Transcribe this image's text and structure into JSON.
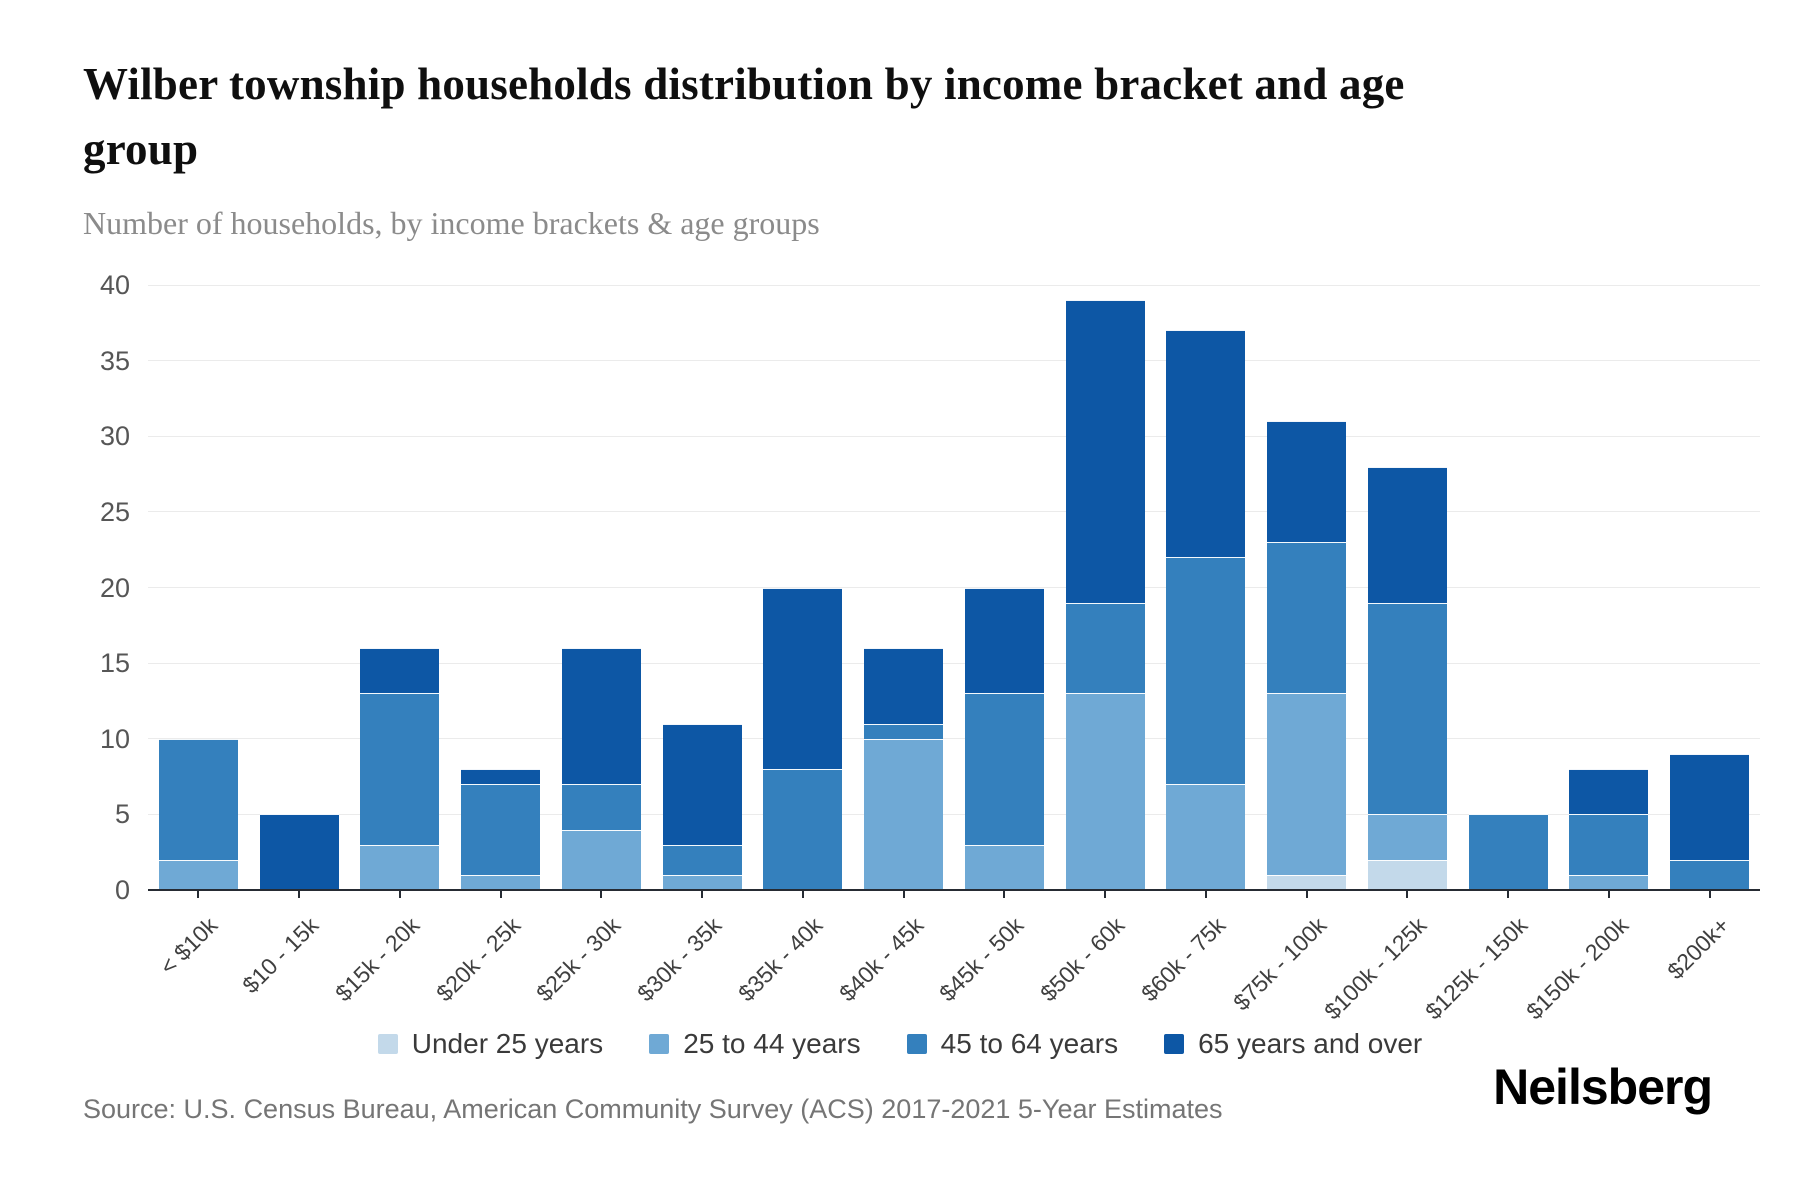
{
  "title": "Wilber township households distribution by income bracket and age group",
  "subtitle": "Number of households, by income brackets & age groups",
  "source": "Source: U.S. Census Bureau, American Community Survey (ACS) 2017-2021 5-Year Estimates",
  "logo": "Neilsberg",
  "colors": {
    "under_25": "#c3d9ea",
    "25_to_44": "#6fa9d5",
    "45_to_64": "#3480bd",
    "65_and_over": "#0d57a5",
    "gridline": "#ebebeb",
    "axis_line": "#262b33"
  },
  "chart_data": {
    "type": "bar",
    "stacked": true,
    "title": "Wilber township households distribution by income bracket and age group",
    "xlabel": "",
    "ylabel": "Number of households",
    "ylim": [
      0,
      40
    ],
    "y_ticks": [
      0,
      5,
      10,
      15,
      20,
      25,
      30,
      35,
      40
    ],
    "grid": true,
    "legend_position": "bottom",
    "categories": [
      "< $10k",
      "$10 - 15k",
      "$15k - 20k",
      "$20k - 25k",
      "$25k - 30k",
      "$30k - 35k",
      "$35k - 40k",
      "$40k - 45k",
      "$45k - 50k",
      "$50k - 60k",
      "$60k - 75k",
      "$75k - 100k",
      "$100k - 125k",
      "$125k - 150k",
      "$150k - 200k",
      "$200k+"
    ],
    "series": [
      {
        "name": "Under 25 years",
        "color": "#c3d9ea",
        "values": [
          0,
          0,
          0,
          0,
          0,
          0,
          0,
          0,
          0,
          0,
          0,
          1,
          2,
          0,
          0,
          0
        ]
      },
      {
        "name": "25 to 44 years",
        "color": "#6fa9d5",
        "values": [
          2,
          0,
          3,
          1,
          4,
          1,
          0,
          10,
          3,
          13,
          7,
          12,
          3,
          0,
          1,
          0
        ]
      },
      {
        "name": "45 to 64 years",
        "color": "#3480bd",
        "values": [
          8,
          0,
          10,
          6,
          3,
          2,
          8,
          1,
          10,
          6,
          15,
          10,
          14,
          5,
          4,
          2
        ]
      },
      {
        "name": "65 years and over",
        "color": "#0d57a5",
        "values": [
          0,
          5,
          3,
          1,
          9,
          8,
          12,
          5,
          7,
          20,
          15,
          8,
          9,
          0,
          3,
          7
        ]
      }
    ],
    "totals": [
      10,
      5,
      16,
      8,
      16,
      11,
      20,
      16,
      20,
      39,
      37,
      31,
      28,
      5,
      8,
      9
    ]
  }
}
